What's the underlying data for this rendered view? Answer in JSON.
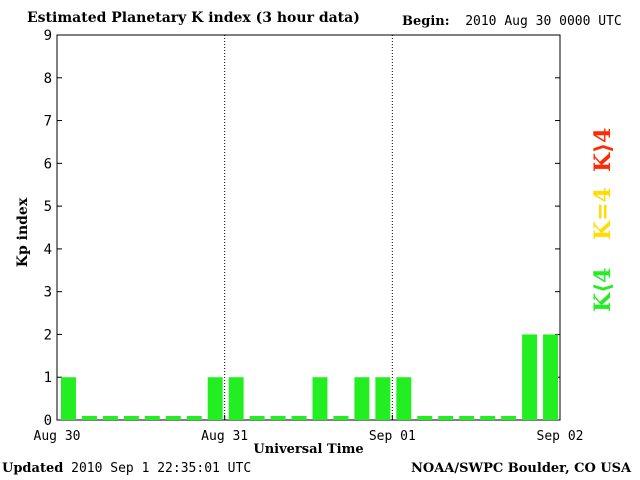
{
  "header": {
    "title": "Estimated Planetary K index (3 hour data)",
    "begin_label": "Begin:",
    "begin_value": "2010 Aug 30 0000 UTC"
  },
  "footer": {
    "updated_label": "Updated",
    "updated_value": "2010 Sep  1 22:35:01 UTC",
    "source": "NOAA/SWPC Boulder, CO USA"
  },
  "legend": [
    {
      "label": "K>4",
      "color": "#ff2a00"
    },
    {
      "label": "K=4",
      "color": "#ffdd00"
    },
    {
      "label": "K<4",
      "color": "#22ee22"
    }
  ],
  "chart_data": {
    "type": "bar",
    "ylabel": "Kp index",
    "xlabel": "Universal Time",
    "ylim": [
      0,
      9
    ],
    "yticks": [
      "0",
      "1",
      "2",
      "3",
      "4",
      "5",
      "6",
      "7",
      "8",
      "9"
    ],
    "xtick_labels": [
      "Aug 30",
      "Aug 31",
      "Sep 01",
      "Sep 02"
    ],
    "day_separators": [
      "Aug 31",
      "Sep 01"
    ],
    "interval_hours": 3,
    "bar_color": "#22ee22",
    "series": [
      {
        "values": [
          1,
          0,
          0,
          0,
          0,
          0,
          0,
          1,
          1,
          0,
          0,
          0,
          1,
          0,
          1,
          1,
          1,
          0,
          0,
          0,
          0,
          0,
          2,
          2
        ]
      }
    ]
  }
}
